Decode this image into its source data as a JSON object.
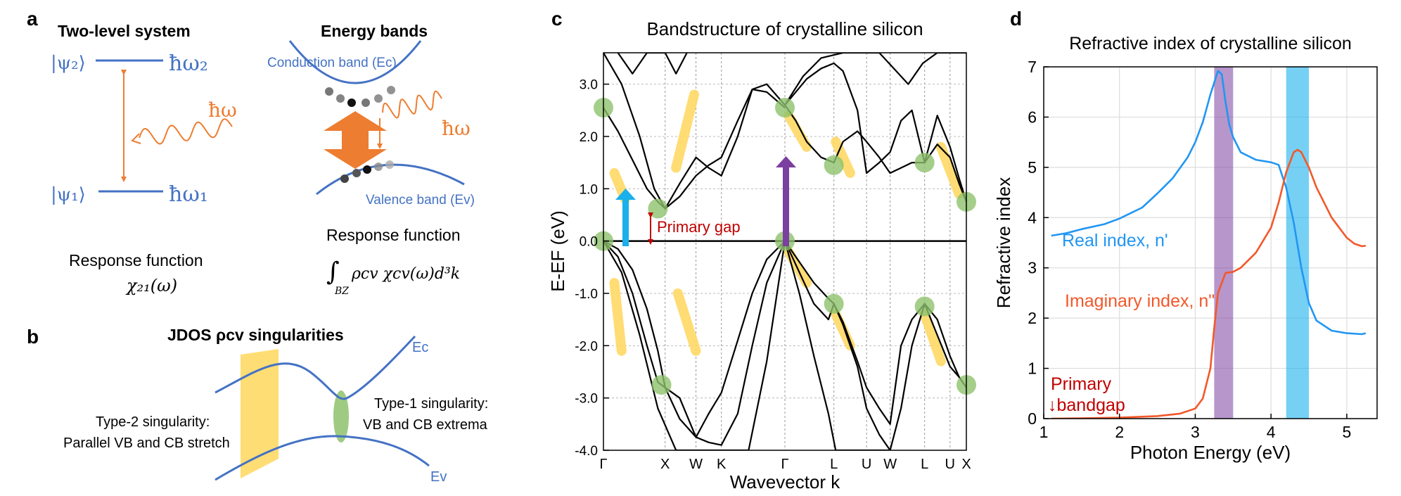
{
  "colors": {
    "blue": "#4472c4",
    "orange": "#ed7d31",
    "green": "#8dc26b",
    "yellow": "#ffd966",
    "red": "#c00000",
    "cyan": "#1ab0ec",
    "purple": "#7b3fa0",
    "real": "#2196f3",
    "imag": "#f2582a"
  },
  "panel_a": {
    "label": "a",
    "two_level_title": "Two-level system",
    "psi2": "|ψ₂⟩",
    "psi1": "|ψ₁⟩",
    "hw2": "ħω₂",
    "hw1": "ħω₁",
    "hw": "ħω",
    "response_left": "Response function",
    "chi21": "χ₂₁(ω)",
    "energy_bands_title": "Energy bands",
    "conduction_band": "Conduction band (Ec)",
    "valence_band": "Valence band (Ev)",
    "hw_right": "ħω",
    "response_right": "Response function",
    "integral_sub": "BZ",
    "integrand": "ρcv χcv(ω)d³k"
  },
  "panel_b": {
    "label": "b",
    "title": "JDOS ρcv singularities",
    "ec": "Ec",
    "ev": "Ev",
    "type2_line1": "Type-2 singularity:",
    "type2_line2": "Parallel VB and CB stretch",
    "type1_line1": "Type-1 singularity:",
    "type1_line2": "VB and CB extrema"
  },
  "panel_c": {
    "label": "c",
    "chart_data": {
      "type": "line",
      "title": "Bandstructure of crystalline silicon",
      "xlabel": "Wavevector k",
      "ylabel": "E-EF (eV)",
      "ylim": [
        -4.0,
        3.6
      ],
      "yticks": [
        "3.0",
        "2.0",
        "1.0",
        "0.0",
        "-1.0",
        "-2.0",
        "-3.0",
        "-4.0"
      ],
      "ytick_values": [
        3,
        2,
        1,
        0,
        -1,
        -2,
        -3,
        -4
      ],
      "kpoints": [
        "Γ",
        "X",
        "W",
        "K",
        "Γ",
        "L",
        "U",
        "W",
        "L",
        "U",
        "X"
      ],
      "kpoint_positions": [
        0,
        0.17,
        0.255,
        0.325,
        0.5,
        0.635,
        0.725,
        0.79,
        0.885,
        0.955,
        1.0
      ],
      "annotation": "Primary gap",
      "series": [
        {
          "x": [
            0,
            0.04,
            0.08,
            0.12,
            0.15,
            0.17,
            0.21,
            0.255,
            0.29,
            0.325,
            0.37,
            0.41,
            0.45,
            0.5
          ],
          "y": [
            0,
            -0.15,
            -0.55,
            -1.3,
            -2.1,
            -2.8,
            -3.4,
            -3.75,
            -3.3,
            -2.9,
            -1.9,
            -1.0,
            -0.35,
            0
          ]
        },
        {
          "x": [
            0,
            0.04,
            0.08,
            0.12,
            0.15,
            0.17,
            0.21,
            0.255,
            0.29,
            0.325,
            0.37,
            0.41,
            0.45,
            0.5
          ],
          "y": [
            0,
            -0.3,
            -1.0,
            -2.0,
            -2.7,
            -2.8,
            -3.0,
            -3.75,
            -3.85,
            -3.9,
            -3.3,
            -2.0,
            -0.8,
            0
          ]
        },
        {
          "x": [
            0,
            0.05,
            0.1,
            0.15,
            0.2,
            0.25,
            0.32,
            0.4,
            0.45,
            0.5
          ],
          "y": [
            0,
            -0.6,
            -1.8,
            -3.2,
            -4.0,
            -4.0,
            -4.0,
            -4.0,
            -2.3,
            0
          ]
        },
        {
          "x": [
            0,
            0.04,
            0.08,
            0.12,
            0.15,
            0.17,
            0.21,
            0.255,
            0.29,
            0.325,
            0.37,
            0.41,
            0.45,
            0.5
          ],
          "y": [
            2.55,
            2.1,
            1.55,
            1.0,
            0.75,
            0.62,
            1.1,
            1.6,
            1.4,
            1.25,
            2.0,
            2.9,
            2.85,
            2.55
          ]
        },
        {
          "x": [
            0,
            0.05,
            0.1,
            0.14,
            0.17,
            0.21,
            0.255,
            0.29,
            0.325,
            0.37,
            0.41,
            0.45,
            0.5
          ],
          "y": [
            3.6,
            3.0,
            2.0,
            1.0,
            0.62,
            0.85,
            1.25,
            1.45,
            1.6,
            2.3,
            2.9,
            3.0,
            2.6
          ]
        },
        {
          "x": [
            0.04,
            0.08,
            0.12,
            0.17,
            0.2,
            0.23
          ],
          "y": [
            3.6,
            3.2,
            3.6,
            3.6,
            3.2,
            3.6
          ]
        },
        {
          "x": [
            0.5,
            0.54,
            0.58,
            0.62,
            0.635,
            0.66,
            0.7,
            0.725,
            0.76,
            0.79,
            0.82,
            0.85,
            0.885,
            0.92,
            0.955,
            0.98,
            1.0
          ],
          "y": [
            0,
            -0.4,
            -0.8,
            -1.1,
            -1.2,
            -1.55,
            -2.3,
            -2.8,
            -3.2,
            -3.5,
            -2.0,
            -1.5,
            -1.2,
            -1.8,
            -2.4,
            -2.6,
            -2.8
          ]
        },
        {
          "x": [
            0.5,
            0.54,
            0.58,
            0.62,
            0.635,
            0.66,
            0.7,
            0.725,
            0.76,
            0.79,
            0.82,
            0.85,
            0.885,
            0.92,
            0.955,
            0.98,
            1.0
          ],
          "y": [
            0,
            -0.6,
            -1.2,
            -1.5,
            -1.2,
            -1.6,
            -2.4,
            -3.2,
            -3.7,
            -4.0,
            -3.2,
            -2.0,
            -1.2,
            -1.5,
            -2.2,
            -2.6,
            -2.8
          ]
        },
        {
          "x": [
            0.5,
            0.54,
            0.58,
            0.62,
            0.64,
            0.66,
            0.7,
            0.73,
            0.76,
            0.79
          ],
          "y": [
            0,
            -1.0,
            -2.2,
            -3.3,
            -4.0,
            -4.0,
            -4.0,
            -4.0,
            -4.0,
            -4.0
          ]
        },
        {
          "x": [
            0.5,
            0.53,
            0.56,
            0.6,
            0.635,
            0.66,
            0.7,
            0.725,
            0.76,
            0.79,
            0.82,
            0.85,
            0.885,
            0.92,
            0.955,
            0.98,
            1.0
          ],
          "y": [
            2.6,
            2.3,
            1.9,
            1.6,
            1.5,
            1.9,
            2.1,
            1.9,
            1.6,
            1.3,
            1.4,
            1.5,
            1.5,
            1.85,
            1.6,
            1.1,
            0.75
          ]
        },
        {
          "x": [
            0.5,
            0.53,
            0.56,
            0.6,
            0.635,
            0.66,
            0.7,
            0.725,
            0.76,
            0.79,
            0.82,
            0.85,
            0.885,
            0.92,
            0.955,
            0.98,
            1.0
          ],
          "y": [
            2.6,
            2.85,
            3.1,
            3.3,
            3.4,
            3.25,
            2.5,
            1.3,
            1.5,
            1.7,
            2.3,
            2.5,
            1.5,
            2.4,
            1.8,
            1.2,
            0.75
          ]
        },
        {
          "x": [
            0.5,
            0.55,
            0.6,
            0.66,
            0.72,
            0.76,
            0.8,
            0.84,
            0.88,
            0.92,
            0.96,
            1.0
          ],
          "y": [
            2.6,
            3.15,
            3.5,
            3.6,
            3.6,
            3.6,
            3.3,
            3.0,
            3.4,
            3.6,
            3.6,
            3.6
          ]
        }
      ],
      "critical_points": [
        {
          "x": 0,
          "y": 2.55
        },
        {
          "x": 0,
          "y": 0
        },
        {
          "x": 0.15,
          "y": 0.62
        },
        {
          "x": 0.16,
          "y": -2.75
        },
        {
          "x": 0.5,
          "y": 2.55
        },
        {
          "x": 0.5,
          "y": 0
        },
        {
          "x": 0.635,
          "y": 1.45
        },
        {
          "x": 0.635,
          "y": -1.2
        },
        {
          "x": 0.885,
          "y": 1.5
        },
        {
          "x": 0.885,
          "y": -1.25
        },
        {
          "x": 1.0,
          "y": 0.75
        },
        {
          "x": 1.0,
          "y": -2.75
        }
      ]
    }
  },
  "panel_d": {
    "label": "d",
    "chart_data": {
      "type": "line",
      "title": "Refractive index of crystalline silicon",
      "xlabel": "Photon Energy (eV)",
      "ylabel": "Refractive index",
      "xlim": [
        1,
        5.4
      ],
      "ylim": [
        0,
        7
      ],
      "xticks": [
        "1",
        "2",
        "3",
        "4",
        "5"
      ],
      "xtick_values": [
        1,
        2,
        3,
        4,
        5
      ],
      "yticks": [
        "0",
        "1",
        "2",
        "3",
        "4",
        "5",
        "6",
        "7"
      ],
      "ytick_values": [
        0,
        1,
        2,
        3,
        4,
        5,
        6,
        7
      ],
      "bands": [
        {
          "color": "purple",
          "xmin": 3.25,
          "xmax": 3.5
        },
        {
          "color": "cyan",
          "xmin": 4.2,
          "xmax": 4.5
        }
      ],
      "series": [
        {
          "name": "Real index, n'",
          "color": "real",
          "x": [
            1.1,
            1.3,
            1.5,
            1.8,
            2.0,
            2.3,
            2.5,
            2.7,
            2.9,
            3.0,
            3.1,
            3.2,
            3.3,
            3.35,
            3.4,
            3.45,
            3.5,
            3.6,
            3.8,
            4.0,
            4.1,
            4.2,
            4.3,
            4.4,
            4.5,
            4.6,
            4.8,
            5.0,
            5.2,
            5.25
          ],
          "y": [
            3.64,
            3.69,
            3.77,
            3.87,
            3.98,
            4.2,
            4.48,
            4.78,
            5.2,
            5.5,
            5.9,
            6.45,
            6.92,
            6.85,
            6.3,
            5.85,
            5.6,
            5.3,
            5.15,
            5.1,
            5.05,
            4.6,
            3.9,
            3.0,
            2.3,
            1.95,
            1.75,
            1.7,
            1.68,
            1.7
          ]
        },
        {
          "name": "Imaginary index, n\"",
          "color": "imag",
          "x": [
            1.1,
            1.5,
            2.0,
            2.5,
            2.8,
            3.0,
            3.1,
            3.2,
            3.25,
            3.3,
            3.4,
            3.5,
            3.6,
            3.8,
            4.0,
            4.1,
            4.2,
            4.3,
            4.35,
            4.4,
            4.5,
            4.6,
            4.8,
            5.0,
            5.1,
            5.2,
            5.25
          ],
          "y": [
            0,
            0.005,
            0.02,
            0.05,
            0.1,
            0.2,
            0.4,
            1.0,
            1.8,
            2.5,
            2.9,
            2.92,
            3.0,
            3.3,
            3.8,
            4.3,
            4.9,
            5.3,
            5.35,
            5.3,
            5.0,
            4.6,
            4.0,
            3.6,
            3.48,
            3.43,
            3.44
          ]
        }
      ],
      "annotation_line1": "Primary",
      "annotation_line2": "↓bandgap"
    }
  }
}
